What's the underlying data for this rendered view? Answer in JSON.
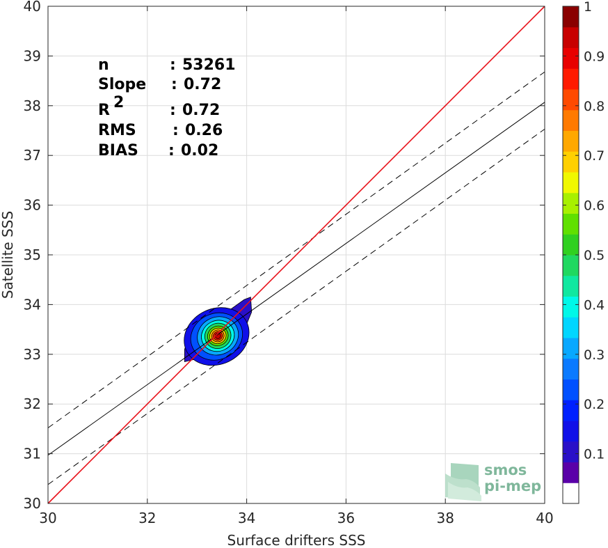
{
  "chart_data": {
    "type": "scatter",
    "subtype": "density-contour",
    "title": "",
    "xlabel": "Surface drifters SSS",
    "ylabel": "Satellite SSS",
    "xlim": [
      30,
      40
    ],
    "ylim": [
      30,
      40
    ],
    "xticks": [
      "30",
      "32",
      "34",
      "36",
      "38",
      "40"
    ],
    "yticks": [
      "30",
      "31",
      "32",
      "33",
      "34",
      "35",
      "36",
      "37",
      "38",
      "39",
      "40"
    ],
    "grid": true,
    "stats": [
      {
        "key": "n",
        "sep": ": ",
        "value": "53261"
      },
      {
        "key": "Slope",
        "sep": ": ",
        "value": "0.72"
      },
      {
        "key": "R",
        "sup": "2",
        "sep": ": ",
        "value": "0.72"
      },
      {
        "key": "RMS",
        "sep": ": ",
        "value": "0.26"
      },
      {
        "key": "BIAS",
        "sep": ": ",
        "value": "0.02"
      }
    ],
    "lines": {
      "identity": {
        "x": [
          30,
          40
        ],
        "y": [
          30,
          40
        ],
        "color": "#e8111a"
      },
      "fit": {
        "x": [
          30,
          40
        ],
        "y": [
          30.97,
          38.07
        ],
        "color": "#000000"
      },
      "fit_upper": {
        "x": [
          30,
          40
        ],
        "y": [
          31.52,
          38.68
        ],
        "color": "#000000",
        "style": "dashed"
      },
      "fit_lower": {
        "x": [
          30,
          40
        ],
        "y": [
          30.38,
          37.53
        ],
        "color": "#000000",
        "style": "dashed"
      }
    },
    "density_center": {
      "x": 33.42,
      "y": 33.37
    },
    "colorbar": {
      "min": 0,
      "max": 1,
      "ticks": [
        "0.1",
        "0.2",
        "0.3",
        "0.4",
        "0.5",
        "0.6",
        "0.7",
        "0.8",
        "0.9",
        "1"
      ],
      "colors": [
        "#ffffff",
        "#5a00a8",
        "#2a10c8",
        "#1010e8",
        "#0020ff",
        "#0050ff",
        "#0a7aff",
        "#08a8ff",
        "#00d6ff",
        "#00f8e8",
        "#10e8a0",
        "#20d860",
        "#30d020",
        "#60e000",
        "#a8f000",
        "#f0f800",
        "#ffd000",
        "#ffa800",
        "#ff7a00",
        "#ff4a00",
        "#ff1a00",
        "#e80000",
        "#c80000",
        "#8a0000"
      ]
    }
  },
  "logo": {
    "line1": "smos",
    "line2": "pi-mep"
  }
}
